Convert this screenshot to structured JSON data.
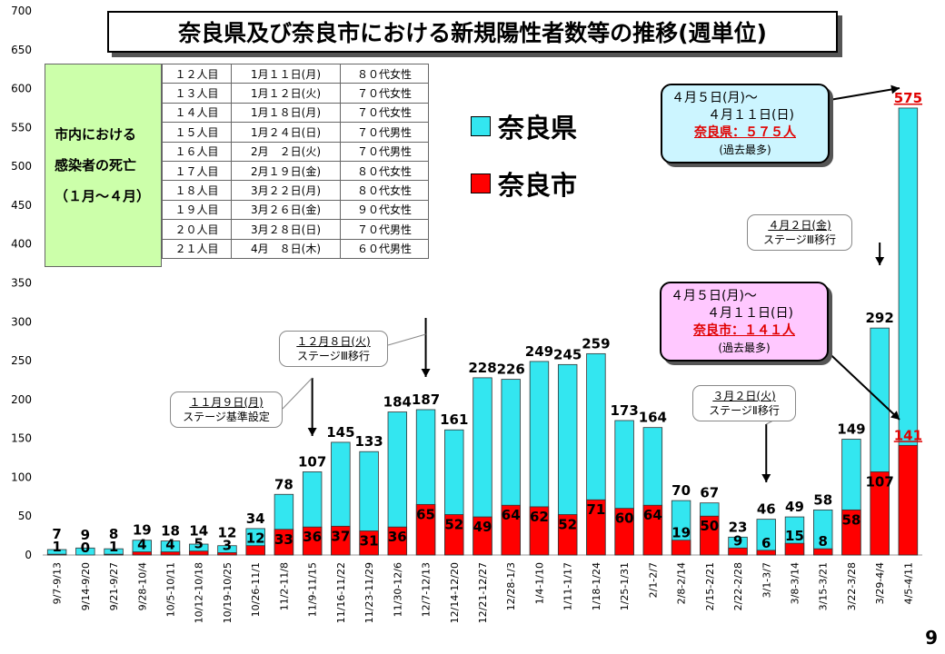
{
  "title": "奈良県及び奈良市における新規陽性者数等の推移(週単位)",
  "page_number": "9",
  "colors": {
    "prefecture": "#33e6f0",
    "city": "#ff0000",
    "death_label_bg": "#ccffaa",
    "callout_pink": "#ffc8ff",
    "callout_cyan": "#ccf5ff"
  },
  "legend": {
    "prefecture": "奈良県",
    "city": "奈良市"
  },
  "deaths_box": {
    "line1": "市内における",
    "line2": "感染者の死亡",
    "line3": "（１月～４月）"
  },
  "deaths": [
    [
      "１２人目",
      "1月１１日(月)",
      "８０代女性"
    ],
    [
      "１３人目",
      "1月１２日(火)",
      "７０代女性"
    ],
    [
      "１４人目",
      "1月１８日(月)",
      "７０代女性"
    ],
    [
      "１５人目",
      "1月２４日(日)",
      "７０代男性"
    ],
    [
      "１６人目",
      "2月　２日(火)",
      "７０代男性"
    ],
    [
      "１７人目",
      "2月１９日(金)",
      "８０代女性"
    ],
    [
      "１８人目",
      "3月２２日(月)",
      "８０代女性"
    ],
    [
      "１９人目",
      "3月２６日(金)",
      "９０代女性"
    ],
    [
      "２０人目",
      "3月２８日(日)",
      "７０代男性"
    ],
    [
      "２１人目",
      "4月　８日(木)",
      "６０代男性"
    ]
  ],
  "callouts": {
    "nov9": {
      "line1": "１１月９日(月)",
      "line2": "ステージ基準設定"
    },
    "dec8": {
      "line1": "１２月８日(火)",
      "line2": "ステージⅢ移行"
    },
    "mar2": {
      "line1": "３月２日(火)",
      "line2": "ステージⅡ移行"
    },
    "apr2": {
      "line1": "４月２日(金)",
      "line2": "ステージⅢ移行"
    }
  },
  "pref_record": {
    "line1": "４月５日(月)～",
    "line2": "４月１１日(日)",
    "line3": "奈良県：５７５人",
    "line4": "(過去最多)"
  },
  "city_record": {
    "line1": "４月５日(月)～",
    "line2": "４月１１日(日)",
    "line3": "奈良市：１４１人",
    "line4": "(過去最多)"
  },
  "chart_data": {
    "type": "bar",
    "ylim": [
      0,
      700
    ],
    "yticks": [
      0,
      50,
      100,
      150,
      200,
      250,
      300,
      350,
      400,
      450,
      500,
      550,
      600,
      650,
      700
    ],
    "categories": [
      "9/7-9/13",
      "9/14-9/20",
      "9/21-9/27",
      "9/28-10/4",
      "10/5-10/11",
      "10/12-10/18",
      "10/19-10/25",
      "10/26-11/1",
      "11/2-11/8",
      "11/9-11/15",
      "11/16-11/22",
      "11/23-11/29",
      "11/30-12/6",
      "12/7-12/13",
      "12/14-12/20",
      "12/21-12/27",
      "12/28-1/3",
      "1/4-1/10",
      "1/11-1/17",
      "1/18-1/24",
      "1/25-1/31",
      "2/1-2/7",
      "2/8-2/14",
      "2/15-2/21",
      "2/22-2/28",
      "3/1-3/7",
      "3/8-3/14",
      "3/15-3/21",
      "3/22-3/28",
      "3/29-4/4",
      "4/5-4/11"
    ],
    "series": [
      {
        "name": "奈良県",
        "values": [
          7,
          9,
          8,
          19,
          18,
          14,
          12,
          34,
          78,
          107,
          145,
          133,
          184,
          187,
          161,
          228,
          226,
          249,
          245,
          259,
          173,
          164,
          70,
          67,
          23,
          46,
          49,
          58,
          149,
          292,
          575
        ]
      },
      {
        "name": "奈良市",
        "values": [
          1,
          0,
          1,
          4,
          4,
          5,
          3,
          12,
          33,
          36,
          37,
          31,
          36,
          65,
          52,
          49,
          64,
          62,
          52,
          71,
          60,
          64,
          19,
          50,
          9,
          6,
          15,
          8,
          58,
          107,
          141
        ]
      }
    ]
  }
}
